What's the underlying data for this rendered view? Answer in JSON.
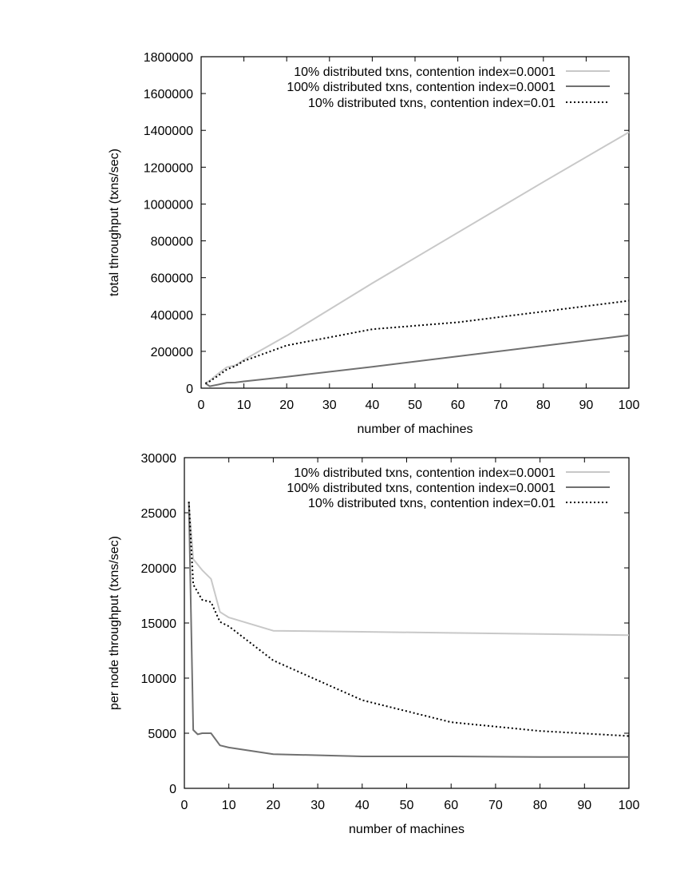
{
  "chart_data": [
    {
      "type": "line",
      "xlabel": "number of machines",
      "ylabel": "total throughput (txns/sec)",
      "xlim": [
        0,
        100
      ],
      "ylim": [
        0,
        1800000
      ],
      "xticks": [
        0,
        10,
        20,
        30,
        40,
        50,
        60,
        70,
        80,
        90,
        100
      ],
      "yticks": [
        0,
        200000,
        400000,
        600000,
        800000,
        1000000,
        1200000,
        1400000,
        1600000,
        1800000
      ],
      "grid": false,
      "legend_position": "top-right",
      "series": [
        {
          "name": "10% distributed txns, contention index=0.0001",
          "color": "#c8c8c8",
          "style": "solid",
          "x": [
            1,
            2,
            4,
            6,
            8,
            10,
            20,
            40,
            60,
            80,
            100
          ],
          "y": [
            26000,
            41000,
            79000,
            114000,
            124000,
            154000,
            285000,
            570000,
            845000,
            1120000,
            1390000
          ]
        },
        {
          "name": "100% distributed txns, contention index=0.0001",
          "color": "#707070",
          "style": "solid",
          "x": [
            1,
            2,
            4,
            6,
            8,
            10,
            20,
            40,
            60,
            80,
            100
          ],
          "y": [
            26000,
            10500,
            19500,
            30000,
            31000,
            37000,
            62000,
            116000,
            173000,
            230000,
            287000
          ]
        },
        {
          "name": "10% distributed txns, contention index=0.01",
          "color": "#000000",
          "style": "dotted",
          "x": [
            1,
            2,
            4,
            6,
            8,
            10,
            20,
            40,
            60,
            80,
            100
          ],
          "y": [
            26000,
            37000,
            68000,
            102000,
            120000,
            148000,
            232000,
            320000,
            358000,
            416000,
            475000
          ]
        }
      ]
    },
    {
      "type": "line",
      "xlabel": "number of machines",
      "ylabel": "per node throughput (txns/sec)",
      "xlim": [
        0,
        100
      ],
      "ylim": [
        0,
        30000
      ],
      "xticks": [
        0,
        10,
        20,
        30,
        40,
        50,
        60,
        70,
        80,
        90,
        100
      ],
      "yticks": [
        0,
        5000,
        10000,
        15000,
        20000,
        25000,
        30000
      ],
      "grid": false,
      "legend_position": "top-right",
      "series": [
        {
          "name": "10% distributed txns, contention index=0.0001",
          "color": "#c8c8c8",
          "style": "solid",
          "x": [
            1,
            2,
            4,
            6,
            8,
            10,
            20,
            40,
            60,
            80,
            100
          ],
          "y": [
            26000,
            20800,
            19800,
            19000,
            16000,
            15500,
            14300,
            14200,
            14100,
            14000,
            13900
          ]
        },
        {
          "name": "100% distributed txns, contention index=0.0001",
          "color": "#707070",
          "style": "solid",
          "x": [
            1,
            2,
            3,
            4,
            6,
            8,
            10,
            20,
            40,
            60,
            80,
            100
          ],
          "y": [
            26000,
            5300,
            4900,
            5000,
            5000,
            3900,
            3700,
            3100,
            2900,
            2900,
            2850,
            2850
          ]
        },
        {
          "name": "10% distributed txns, contention index=0.01",
          "color": "#000000",
          "style": "dotted",
          "x": [
            1,
            2,
            4,
            6,
            8,
            10,
            20,
            40,
            60,
            80,
            100
          ],
          "y": [
            26000,
            18500,
            17100,
            16900,
            15100,
            14700,
            11600,
            8000,
            6000,
            5200,
            4750
          ]
        }
      ]
    }
  ]
}
